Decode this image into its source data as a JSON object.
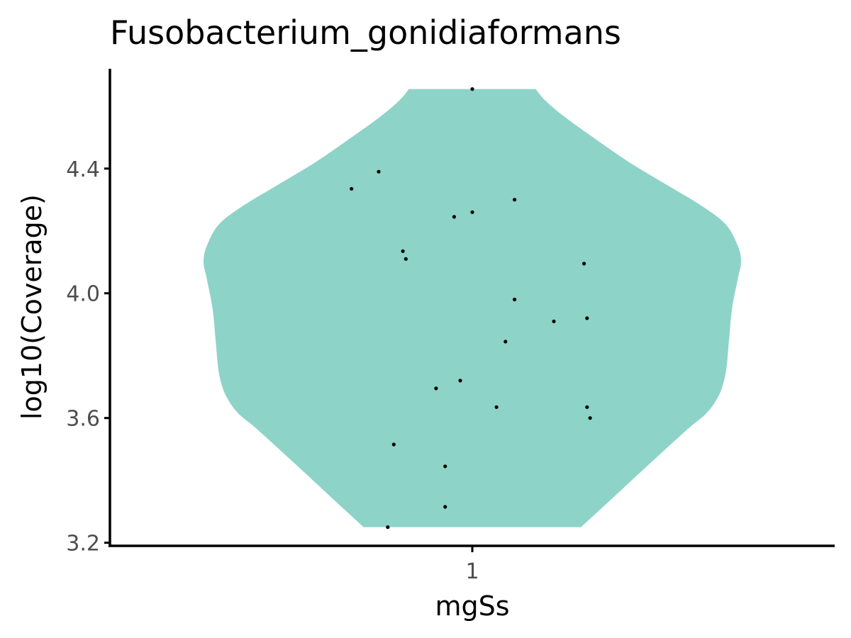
{
  "chart_data": {
    "type": "violin",
    "title": "Fusobacterium_gonidiaformans",
    "xlabel": "mgSs",
    "ylabel": "log10(Coverage)",
    "categories": [
      "1"
    ],
    "ylim": [
      3.19,
      4.72
    ],
    "yticks": [
      {
        "value": 3.2,
        "label": "3.2"
      },
      {
        "value": 3.6,
        "label": "3.6"
      },
      {
        "value": 4.0,
        "label": "4.0"
      },
      {
        "value": 4.4,
        "label": "4.4"
      }
    ],
    "xlim": [
      0.4,
      1.6
    ],
    "grid": false,
    "legend": "none",
    "fill_color": "#8ed3c8",
    "point_color": "#000000",
    "violin": {
      "category": "1",
      "y_min": 3.25,
      "y_max": 4.655,
      "density_profile": [
        {
          "y": 3.25,
          "half_width": 0.18
        },
        {
          "y": 3.33,
          "half_width": 0.225
        },
        {
          "y": 3.42,
          "half_width": 0.275
        },
        {
          "y": 3.5,
          "half_width": 0.32
        },
        {
          "y": 3.57,
          "half_width": 0.36
        },
        {
          "y": 3.62,
          "half_width": 0.39
        },
        {
          "y": 3.68,
          "half_width": 0.41
        },
        {
          "y": 3.75,
          "half_width": 0.42
        },
        {
          "y": 3.85,
          "half_width": 0.425
        },
        {
          "y": 3.95,
          "half_width": 0.43
        },
        {
          "y": 4.05,
          "half_width": 0.44
        },
        {
          "y": 4.1,
          "half_width": 0.445
        },
        {
          "y": 4.15,
          "half_width": 0.44
        },
        {
          "y": 4.22,
          "half_width": 0.42
        },
        {
          "y": 4.28,
          "half_width": 0.38
        },
        {
          "y": 4.35,
          "half_width": 0.32
        },
        {
          "y": 4.42,
          "half_width": 0.26
        },
        {
          "y": 4.5,
          "half_width": 0.2
        },
        {
          "y": 4.57,
          "half_width": 0.15
        },
        {
          "y": 4.62,
          "half_width": 0.12
        },
        {
          "y": 4.655,
          "half_width": 0.105
        }
      ]
    },
    "points": [
      {
        "x": 1.0,
        "y": 4.655
      },
      {
        "x": 0.845,
        "y": 4.39
      },
      {
        "x": 0.8,
        "y": 4.335
      },
      {
        "x": 1.07,
        "y": 4.3
      },
      {
        "x": 1.0,
        "y": 4.26
      },
      {
        "x": 0.97,
        "y": 4.245
      },
      {
        "x": 0.885,
        "y": 4.135
      },
      {
        "x": 0.89,
        "y": 4.11
      },
      {
        "x": 1.185,
        "y": 4.095
      },
      {
        "x": 1.07,
        "y": 3.98
      },
      {
        "x": 1.19,
        "y": 3.92
      },
      {
        "x": 1.135,
        "y": 3.91
      },
      {
        "x": 1.055,
        "y": 3.845
      },
      {
        "x": 0.98,
        "y": 3.72
      },
      {
        "x": 0.94,
        "y": 3.695
      },
      {
        "x": 1.04,
        "y": 3.635
      },
      {
        "x": 1.19,
        "y": 3.635
      },
      {
        "x": 1.195,
        "y": 3.6
      },
      {
        "x": 0.87,
        "y": 3.515
      },
      {
        "x": 0.955,
        "y": 3.445
      },
      {
        "x": 0.955,
        "y": 3.315
      },
      {
        "x": 0.86,
        "y": 3.25
      }
    ]
  }
}
